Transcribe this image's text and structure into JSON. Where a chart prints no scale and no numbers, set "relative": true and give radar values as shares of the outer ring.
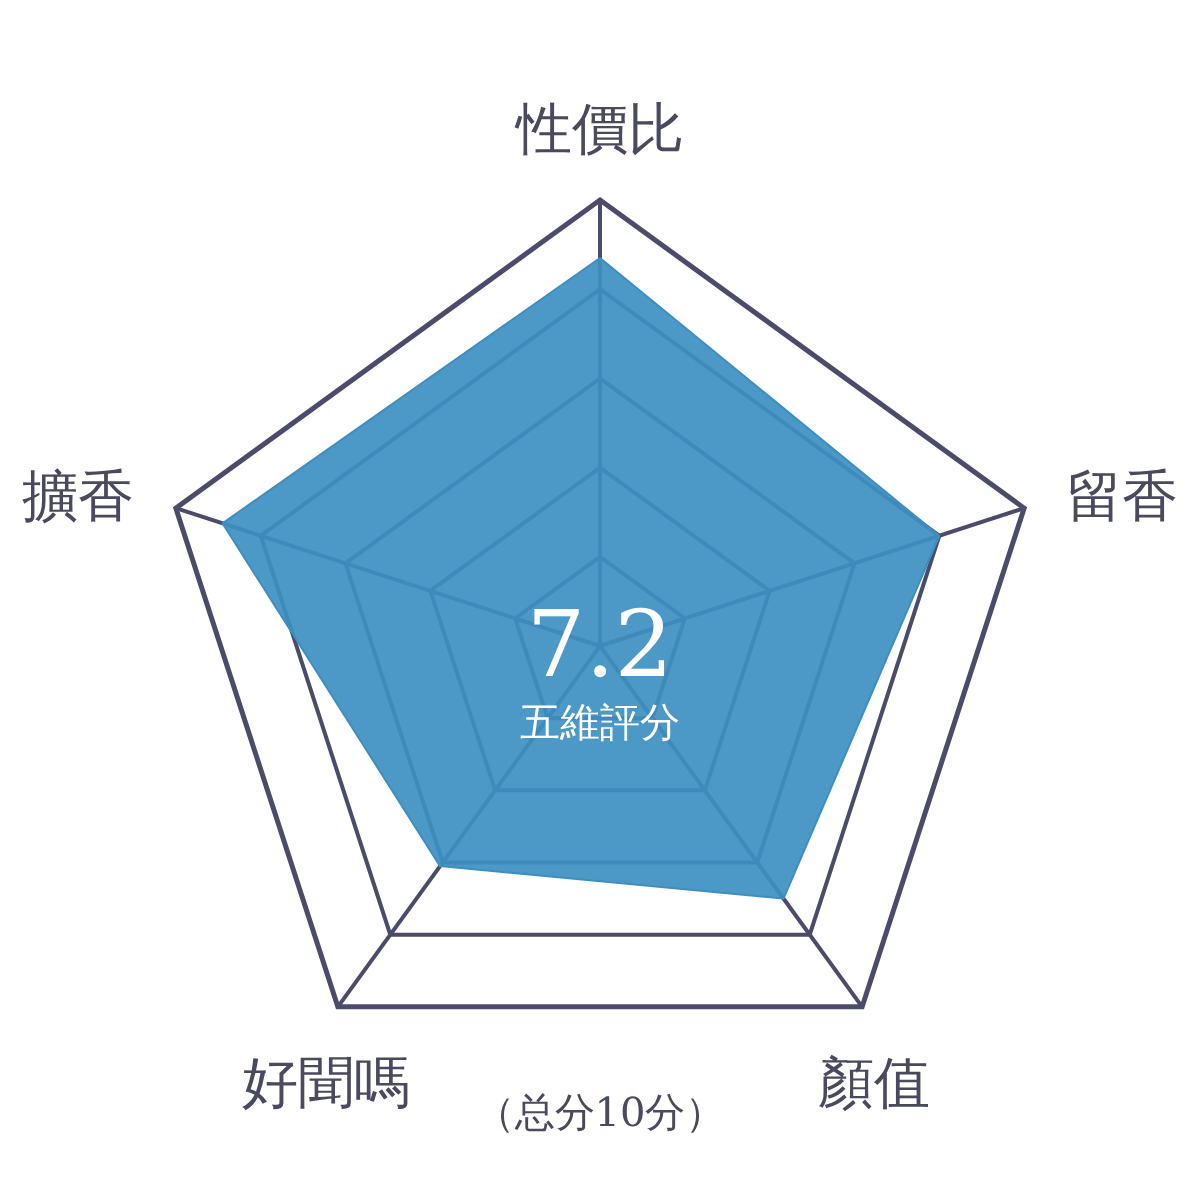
{
  "chart_data": {
    "type": "radar",
    "relative": true,
    "grid": true,
    "categories": [
      "性價比",
      "留香",
      "顏值",
      "好聞嗎",
      "擴香"
    ],
    "series": [
      {
        "color": "#3d8fc2",
        "values": [
          0.87,
          0.8,
          0.7,
          0.61,
          0.89
        ]
      }
    ],
    "annotations": [
      "7.2",
      "五維評分",
      "（总分10分）"
    ]
  }
}
